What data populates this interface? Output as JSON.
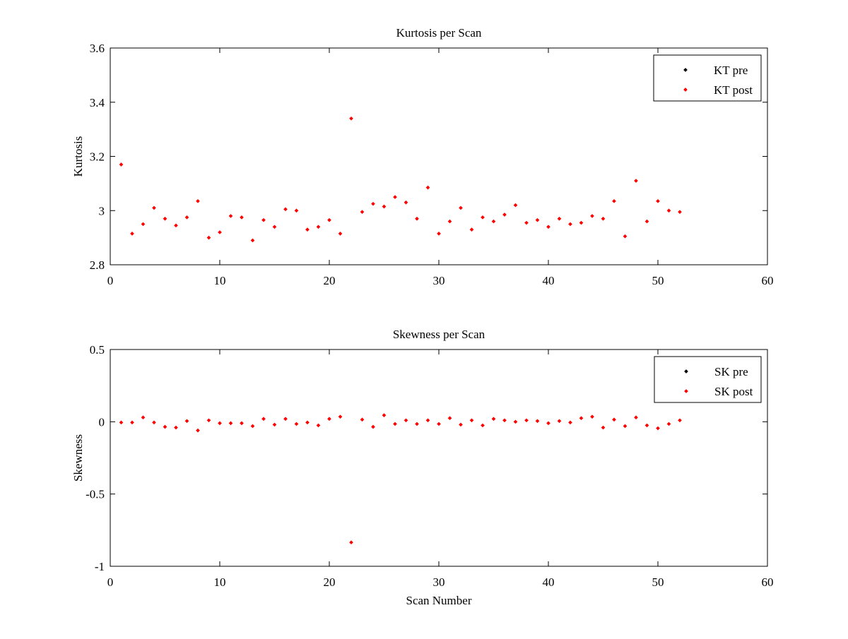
{
  "chart_data": [
    {
      "type": "scatter",
      "title": "Kurtosis per Scan",
      "xlabel": "",
      "ylabel": "Kurtosis",
      "xlim": [
        0,
        60
      ],
      "ylim": [
        2.8,
        3.6
      ],
      "xticks": [
        0,
        10,
        20,
        30,
        40,
        50,
        60
      ],
      "yticks": [
        2.8,
        3,
        3.2,
        3.4,
        3.6
      ],
      "xtick_labels": [
        "0",
        "10",
        "20",
        "30",
        "40",
        "50",
        "60"
      ],
      "ytick_labels": [
        "2.8",
        "3",
        "3.2",
        "3.4",
        "3.6"
      ],
      "grid": false,
      "legend_position": "top-right",
      "series": [
        {
          "name": "KT pre",
          "color": "#000000",
          "x": [],
          "y": []
        },
        {
          "name": "KT post",
          "color": "#ff0000",
          "x": [
            1,
            2,
            3,
            4,
            5,
            6,
            7,
            8,
            9,
            10,
            11,
            12,
            13,
            14,
            15,
            16,
            17,
            18,
            19,
            20,
            21,
            22,
            23,
            24,
            25,
            26,
            27,
            28,
            29,
            30,
            31,
            32,
            33,
            34,
            35,
            36,
            37,
            38,
            39,
            40,
            41,
            42,
            43,
            44,
            45,
            46,
            47,
            48,
            49,
            50,
            51,
            52
          ],
          "y": [
            3.17,
            2.915,
            2.95,
            3.01,
            2.97,
            2.945,
            2.975,
            3.035,
            2.9,
            2.92,
            2.98,
            2.975,
            2.89,
            2.965,
            2.94,
            3.005,
            3.0,
            2.93,
            2.94,
            2.965,
            2.915,
            3.34,
            2.995,
            3.025,
            3.015,
            3.05,
            3.03,
            2.97,
            3.085,
            2.915,
            2.96,
            3.01,
            2.93,
            2.975,
            2.96,
            2.985,
            3.02,
            2.955,
            2.965,
            2.94,
            2.97,
            2.95,
            2.955,
            2.98,
            2.97,
            3.035,
            2.905,
            3.11,
            2.96,
            3.035,
            3.0,
            2.995
          ]
        }
      ]
    },
    {
      "type": "scatter",
      "title": "Skewness per Scan",
      "xlabel": "Scan Number",
      "ylabel": "Skewness",
      "xlim": [
        0,
        60
      ],
      "ylim": [
        -1,
        0.5
      ],
      "xticks": [
        0,
        10,
        20,
        30,
        40,
        50,
        60
      ],
      "yticks": [
        -1,
        -0.5,
        0,
        0.5
      ],
      "xtick_labels": [
        "0",
        "10",
        "20",
        "30",
        "40",
        "50",
        "60"
      ],
      "ytick_labels": [
        "-1",
        "-0.5",
        "0",
        "0.5"
      ],
      "grid": false,
      "legend_position": "top-right",
      "series": [
        {
          "name": "SK pre",
          "color": "#000000",
          "x": [],
          "y": []
        },
        {
          "name": "SK post",
          "color": "#ff0000",
          "x": [
            1,
            2,
            3,
            4,
            5,
            6,
            7,
            8,
            9,
            10,
            11,
            12,
            13,
            14,
            15,
            16,
            17,
            18,
            19,
            20,
            21,
            22,
            23,
            24,
            25,
            26,
            27,
            28,
            29,
            30,
            31,
            32,
            33,
            34,
            35,
            36,
            37,
            38,
            39,
            40,
            41,
            42,
            43,
            44,
            45,
            46,
            47,
            48,
            49,
            50,
            51,
            52
          ],
          "y": [
            -0.005,
            -0.005,
            0.03,
            -0.005,
            -0.035,
            -0.04,
            0.005,
            -0.06,
            0.01,
            -0.01,
            -0.01,
            -0.01,
            -0.03,
            0.02,
            -0.02,
            0.02,
            -0.015,
            -0.005,
            -0.025,
            0.02,
            0.035,
            -0.835,
            0.015,
            -0.035,
            0.045,
            -0.015,
            0.01,
            -0.015,
            0.01,
            -0.015,
            0.025,
            -0.02,
            0.01,
            -0.025,
            0.02,
            0.01,
            0.0,
            0.01,
            0.005,
            -0.01,
            0.005,
            -0.005,
            0.025,
            0.035,
            -0.04,
            0.015,
            -0.03,
            0.03,
            -0.025,
            -0.045,
            -0.015,
            0.01
          ]
        }
      ]
    }
  ]
}
